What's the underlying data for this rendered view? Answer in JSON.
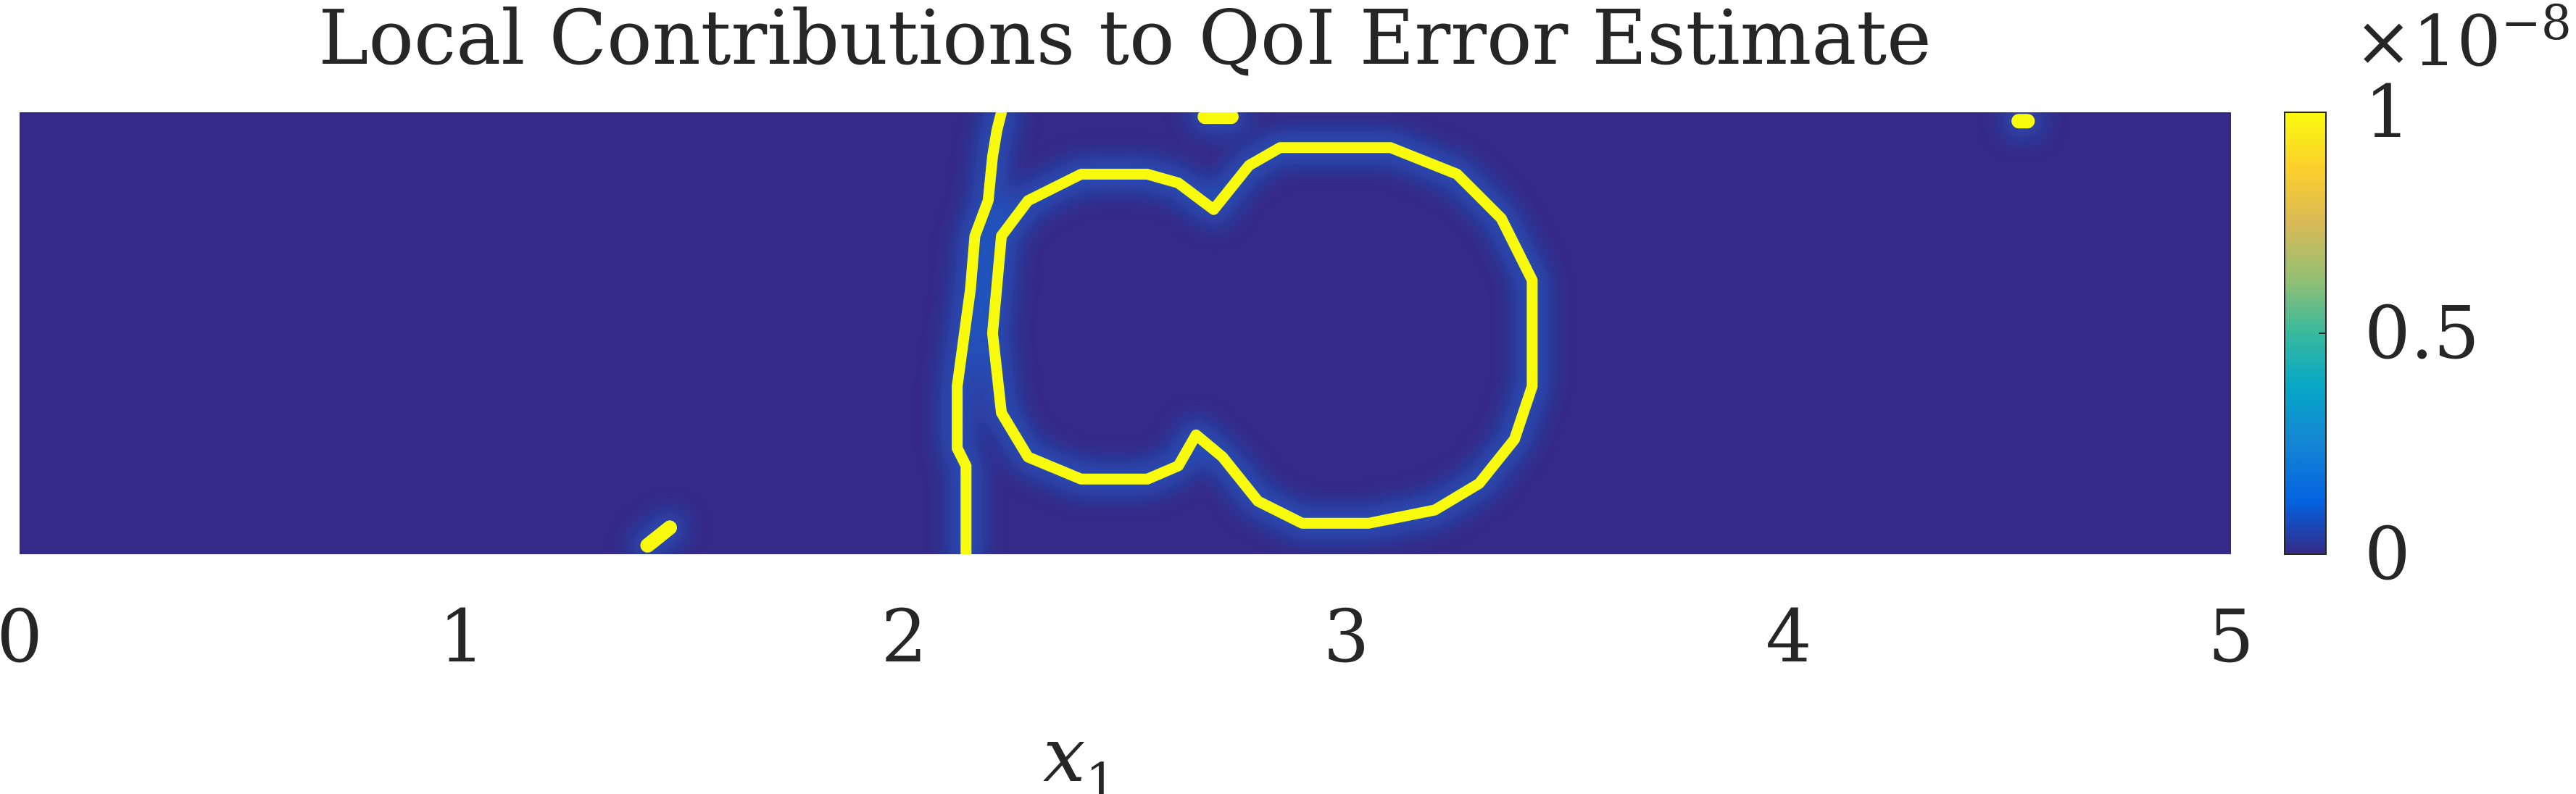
{
  "chart_data": {
    "type": "heatmap",
    "title": "Local Contributions to QoI Error Estimate",
    "xlabel": "x",
    "xlabel_subscript": "1",
    "ylabel": "",
    "xlim": [
      0,
      5
    ],
    "ylim": [
      0,
      1
    ],
    "xticks": [
      "0",
      "1",
      "2",
      "3",
      "4",
      "5"
    ],
    "colorbar": {
      "range": [
        0,
        1
      ],
      "ticks": [
        "0",
        "0.5",
        "1"
      ],
      "multiplier_base": "×10",
      "multiplier_exponent": "−8",
      "colormap": "parula"
    },
    "background_value": 0,
    "features": [
      {
        "name": "double-lobe contour",
        "value": 1,
        "x": [
          2.22,
          2.28,
          2.4,
          2.55,
          2.62,
          2.7,
          2.78,
          2.85,
          3.1,
          3.25,
          3.35,
          3.42,
          3.42,
          3.38,
          3.3,
          3.2,
          3.05,
          2.9,
          2.8,
          2.72,
          2.66,
          2.62,
          2.55,
          2.4,
          2.28,
          2.22,
          2.2,
          2.22
        ],
        "y": [
          0.72,
          0.8,
          0.86,
          0.86,
          0.84,
          0.78,
          0.88,
          0.92,
          0.92,
          0.86,
          0.76,
          0.62,
          0.38,
          0.26,
          0.16,
          0.1,
          0.07,
          0.07,
          0.12,
          0.22,
          0.27,
          0.2,
          0.17,
          0.17,
          0.22,
          0.32,
          0.5,
          0.72
        ]
      },
      {
        "name": "front line",
        "value": 1,
        "x": [
          2.14,
          2.14,
          2.12,
          2.12,
          2.15,
          2.16,
          2.19,
          2.2,
          2.21,
          2.22
        ],
        "y": [
          0.0,
          0.2,
          0.24,
          0.38,
          0.6,
          0.72,
          0.8,
          0.9,
          0.96,
          1.0
        ]
      },
      {
        "name": "bottom spot",
        "value": 1,
        "x": [
          1.42,
          1.47
        ],
        "y": [
          0.02,
          0.06
        ]
      },
      {
        "name": "top spot",
        "value": 1,
        "x": [
          2.68,
          2.74
        ],
        "y": [
          0.99,
          0.99
        ]
      },
      {
        "name": "top right spot",
        "value": 1,
        "x": [
          4.52,
          4.54
        ],
        "y": [
          0.98,
          0.98
        ]
      }
    ]
  }
}
